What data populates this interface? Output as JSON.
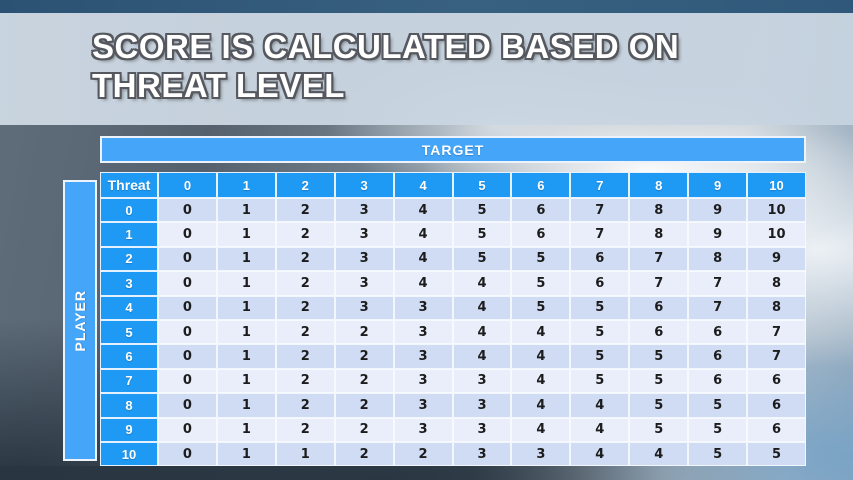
{
  "slide": {
    "title_line1": "SCORE IS CALCULATED BASED ON",
    "title_line2": "THREAT LEVEL"
  },
  "table": {
    "target_label": "TARGET",
    "player_label": "PLAYER",
    "corner_label": "Threat",
    "column_headers": [
      "0",
      "1",
      "2",
      "3",
      "4",
      "5",
      "6",
      "7",
      "8",
      "9",
      "10"
    ],
    "rows": [
      {
        "threat": "0",
        "values": [
          0,
          1,
          2,
          3,
          4,
          5,
          6,
          7,
          8,
          9,
          10
        ]
      },
      {
        "threat": "1",
        "values": [
          0,
          1,
          2,
          3,
          4,
          5,
          6,
          7,
          8,
          9,
          10
        ]
      },
      {
        "threat": "2",
        "values": [
          0,
          1,
          2,
          3,
          4,
          5,
          5,
          6,
          7,
          8,
          9
        ]
      },
      {
        "threat": "3",
        "values": [
          0,
          1,
          2,
          3,
          4,
          4,
          5,
          6,
          7,
          7,
          8
        ]
      },
      {
        "threat": "4",
        "values": [
          0,
          1,
          2,
          3,
          3,
          4,
          5,
          5,
          6,
          7,
          8
        ]
      },
      {
        "threat": "5",
        "values": [
          0,
          1,
          2,
          2,
          3,
          4,
          4,
          5,
          6,
          6,
          7
        ]
      },
      {
        "threat": "6",
        "values": [
          0,
          1,
          2,
          2,
          3,
          4,
          4,
          5,
          5,
          6,
          7
        ]
      },
      {
        "threat": "7",
        "values": [
          0,
          1,
          2,
          2,
          3,
          3,
          4,
          5,
          5,
          6,
          6
        ]
      },
      {
        "threat": "8",
        "values": [
          0,
          1,
          2,
          2,
          3,
          3,
          4,
          4,
          5,
          5,
          6
        ]
      },
      {
        "threat": "9",
        "values": [
          0,
          1,
          2,
          2,
          3,
          3,
          4,
          4,
          5,
          5,
          6
        ]
      },
      {
        "threat": "10",
        "values": [
          0,
          1,
          1,
          2,
          2,
          3,
          3,
          4,
          4,
          5,
          5
        ]
      }
    ]
  },
  "colors": {
    "header_blue": "#1e9af4",
    "band_blue": "#45a5f8",
    "row_dark": "#cfdcf4",
    "row_light": "#e9eefa"
  }
}
